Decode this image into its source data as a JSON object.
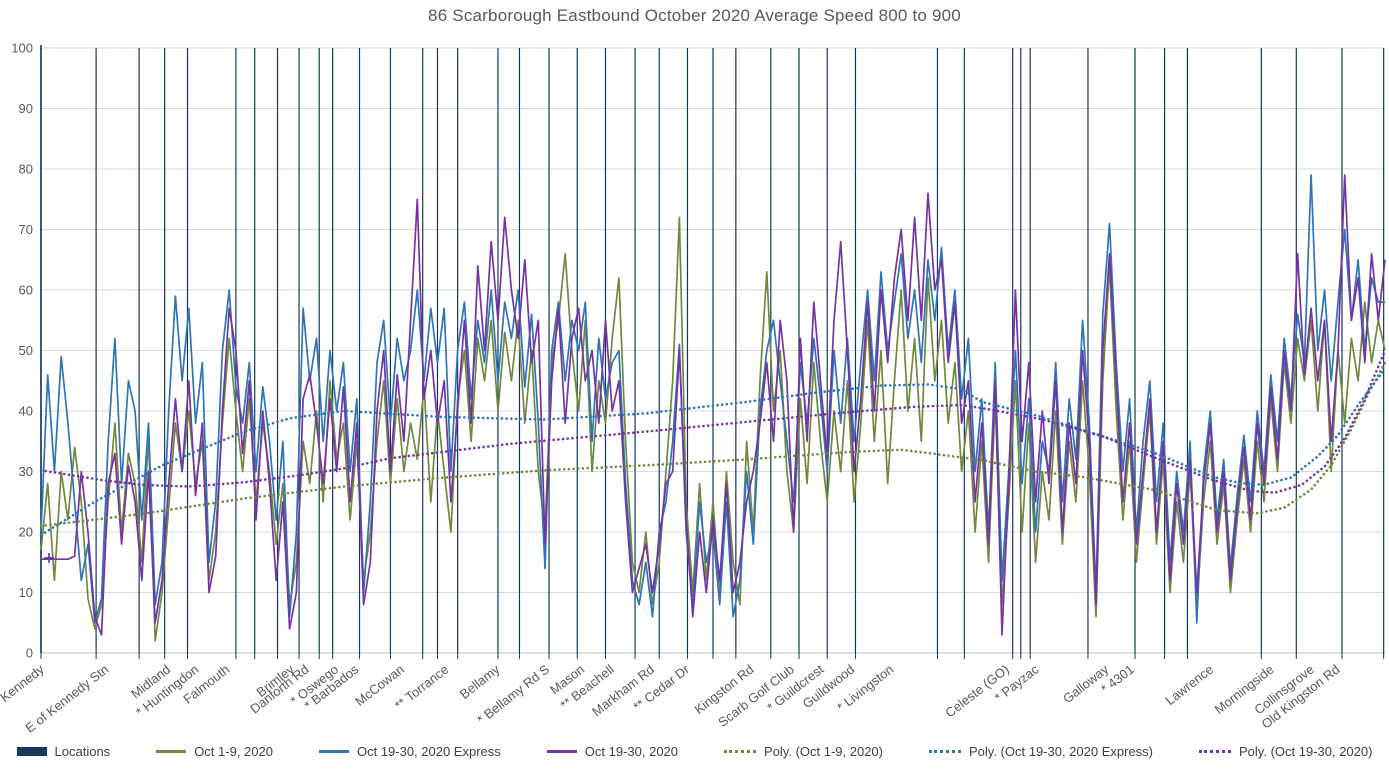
{
  "title": "86 Scarborough Eastbound October 2020 Average Speed 800 to 900",
  "colors": {
    "navy": "#17375E",
    "green": "#71893F",
    "blue": "#2E75B6",
    "purple": "#7633A4",
    "gridline": "#D9D9D9",
    "axis_line": "#BFBFBF",
    "axis_text": "#595959",
    "legend_text": "#404040"
  },
  "chart_data": {
    "type": "line",
    "title": "86 Scarborough Eastbound October 2020 Average Speed 800 to 900",
    "xlabel": "",
    "ylabel": "",
    "ylim": [
      0,
      100
    ],
    "ytick_step": 10,
    "grid": "horizontal",
    "legend_position": "bottom",
    "x_units": "normalized 0-1000 across plot width",
    "categories": [
      {
        "label": "Kennedy",
        "x": 3
      },
      {
        "label": "E of Kennedy Stn",
        "x": 51
      },
      {
        "label": "Midland",
        "x": 97
      },
      {
        "label": "* Huntingdon",
        "x": 118
      },
      {
        "label": "Falmouth",
        "x": 141
      },
      {
        "label": "Brimley",
        "x": 189
      },
      {
        "label": "Danforth Rd",
        "x": 200
      },
      {
        "label": "* Oswego",
        "x": 222
      },
      {
        "label": "* Barbados",
        "x": 237
      },
      {
        "label": "McCowan",
        "x": 271
      },
      {
        "label": "** Torrance",
        "x": 304
      },
      {
        "label": "Bellamy",
        "x": 342
      },
      {
        "label": "* Bellamy Rd S",
        "x": 379
      },
      {
        "label": "Mason",
        "x": 405
      },
      {
        "label": "** Beachell",
        "x": 427
      },
      {
        "label": "Markham Rd",
        "x": 457
      },
      {
        "label": "** Cedar Dr",
        "x": 483
      },
      {
        "label": "Kingston Rd",
        "x": 531
      },
      {
        "label": "Scarb Golf Club",
        "x": 561
      },
      {
        "label": "* Guildcrest",
        "x": 583
      },
      {
        "label": "Guildwood",
        "x": 606
      },
      {
        "label": "* Livingston",
        "x": 635
      },
      {
        "label": "Celeste (GO)",
        "x": 721
      },
      {
        "label": "* Payzac",
        "x": 743
      },
      {
        "label": "Galloway",
        "x": 795
      },
      {
        "label": "* 4301",
        "x": 814
      },
      {
        "label": "Lawrence",
        "x": 873
      },
      {
        "label": "Morningside",
        "x": 918
      },
      {
        "label": "Collinsgrove",
        "x": 948
      },
      {
        "label": "Old Kingston Rd",
        "x": 967
      }
    ],
    "location_lines_x": [
      0,
      41,
      73,
      92,
      109,
      145,
      159,
      176,
      192,
      207,
      217,
      237,
      260,
      284,
      295,
      310,
      340,
      356,
      378,
      399,
      420,
      442,
      460,
      481,
      500,
      517,
      543,
      564,
      585,
      606,
      667,
      687,
      723,
      729,
      736,
      779,
      814,
      836,
      853,
      908,
      934,
      968,
      999
    ],
    "series": [
      {
        "name": "Locations",
        "type": "vertical-lines",
        "color": "#17375E"
      },
      {
        "name": "Oct 1-9, 2020",
        "type": "line",
        "color": "#71893F",
        "x_step": 5,
        "values": [
          17,
          28,
          12,
          30,
          22,
          34,
          25,
          9,
          4,
          8,
          25,
          38,
          20,
          33,
          28,
          15,
          36,
          2,
          10,
          24,
          38,
          30,
          40,
          28,
          35,
          12,
          20,
          38,
          52,
          40,
          30,
          42,
          25,
          38,
          30,
          18,
          28,
          8,
          15,
          35,
          28,
          40,
          25,
          45,
          32,
          38,
          22,
          35,
          12,
          20,
          35,
          45,
          28,
          42,
          30,
          38,
          32,
          44,
          25,
          40,
          30,
          20,
          42,
          50,
          35,
          52,
          45,
          55,
          40,
          53,
          45,
          55,
          38,
          50,
          30,
          20,
          48,
          55,
          66,
          50,
          40,
          55,
          30,
          45,
          38,
          52,
          62,
          35,
          15,
          10,
          20,
          8,
          15,
          30,
          45,
          72,
          25,
          10,
          28,
          12,
          25,
          10,
          30,
          15,
          8,
          35,
          20,
          45,
          63,
          40,
          50,
          30,
          20,
          42,
          28,
          48,
          35,
          25,
          40,
          30,
          45,
          25,
          38,
          55,
          35,
          50,
          28,
          45,
          60,
          40,
          52,
          35,
          62,
          45,
          55,
          38,
          48,
          30,
          40,
          20,
          35,
          15,
          42,
          8,
          25,
          45,
          20,
          38,
          15,
          30,
          22,
          40,
          18,
          35,
          25,
          45,
          30,
          6,
          45,
          64,
          40,
          22,
          35,
          15,
          28,
          40,
          18,
          32,
          10,
          25,
          15,
          30,
          8,
          25,
          35,
          18,
          28,
          10,
          22,
          32,
          20,
          35,
          25,
          42,
          30,
          48,
          38,
          52,
          45,
          55,
          40,
          55,
          30,
          50,
          38,
          52,
          45,
          58,
          48,
          55,
          50
        ]
      },
      {
        "name": "Oct 19-30, 2020 Express",
        "type": "line",
        "color": "#2E75B6",
        "x_step": 5,
        "values": [
          20,
          46,
          30,
          49,
          38,
          25,
          12,
          18,
          5,
          9,
          35,
          52,
          28,
          45,
          40,
          22,
          38,
          8,
          15,
          40,
          59,
          45,
          57,
          38,
          48,
          15,
          25,
          50,
          60,
          44,
          38,
          48,
          30,
          44,
          35,
          22,
          35,
          6,
          20,
          57,
          45,
          52,
          35,
          50,
          40,
          48,
          30,
          42,
          10,
          25,
          48,
          55,
          38,
          52,
          45,
          50,
          60,
          45,
          57,
          48,
          57,
          30,
          50,
          58,
          42,
          55,
          48,
          60,
          45,
          58,
          52,
          60,
          44,
          56,
          38,
          14,
          50,
          58,
          45,
          55,
          50,
          58,
          35,
          52,
          42,
          48,
          50,
          28,
          12,
          8,
          15,
          6,
          20,
          25,
          35,
          51,
          20,
          8,
          25,
          15,
          20,
          8,
          25,
          6,
          12,
          30,
          18,
          40,
          50,
          55,
          45,
          35,
          25,
          48,
          38,
          52,
          42,
          30,
          50,
          38,
          52,
          35,
          48,
          60,
          45,
          63,
          50,
          58,
          66,
          52,
          60,
          48,
          65,
          55,
          67,
          50,
          60,
          42,
          52,
          30,
          42,
          20,
          48,
          12,
          30,
          50,
          28,
          42,
          20,
          35,
          30,
          48,
          25,
          42,
          32,
          55,
          38,
          10,
          56,
          71,
          48,
          30,
          42,
          20,
          35,
          45,
          25,
          38,
          15,
          30,
          20,
          35,
          5,
          30,
          40,
          22,
          32,
          14,
          26,
          36,
          25,
          40,
          30,
          46,
          35,
          52,
          42,
          56,
          48,
          79,
          50,
          60,
          45,
          58,
          70,
          55,
          65,
          50,
          62,
          58,
          58
        ]
      },
      {
        "name": "Oct 19-30, 2020",
        "type": "line",
        "color": "#7633A4",
        "x_step": 5,
        "start_marker": {
          "x": 6,
          "y": 15.7
        },
        "values": [
          15.5,
          15.5,
          15.5,
          15.5,
          15.5,
          16,
          30,
          20,
          6,
          3,
          28,
          33,
          18,
          31,
          25,
          12,
          30,
          5,
          12,
          28,
          42,
          30,
          45,
          26,
          38,
          10,
          16,
          40,
          57,
          50,
          33,
          45,
          22,
          40,
          28,
          12,
          25,
          4,
          10,
          42,
          46,
          38,
          28,
          42,
          30,
          44,
          25,
          38,
          8,
          15,
          40,
          50,
          30,
          46,
          35,
          55,
          75,
          42,
          50,
          38,
          45,
          25,
          40,
          55,
          38,
          64,
          50,
          68,
          55,
          72,
          60,
          52,
          65,
          48,
          55,
          18,
          45,
          57,
          38,
          52,
          57,
          45,
          50,
          38,
          55,
          40,
          45,
          25,
          10,
          14,
          18,
          10,
          18,
          28,
          30,
          50,
          22,
          6,
          20,
          10,
          22,
          12,
          28,
          10,
          15,
          25,
          30,
          38,
          48,
          35,
          55,
          45,
          20,
          52,
          35,
          58,
          45,
          32,
          55,
          68,
          50,
          30,
          42,
          58,
          40,
          60,
          48,
          62,
          70,
          55,
          72,
          55,
          76,
          60,
          65,
          48,
          58,
          38,
          45,
          25,
          38,
          18,
          45,
          3,
          28,
          60,
          35,
          48,
          25,
          40,
          28,
          45,
          20,
          38,
          28,
          50,
          35,
          8,
          50,
          66,
          45,
          25,
          38,
          18,
          30,
          42,
          20,
          35,
          12,
          28,
          18,
          32,
          10,
          28,
          38,
          20,
          30,
          12,
          24,
          34,
          22,
          38,
          28,
          44,
          32,
          50,
          40,
          66,
          46,
          57,
          45,
          55,
          35,
          50,
          79,
          55,
          62,
          48,
          66,
          55,
          65
        ]
      },
      {
        "name": "Poly. (Oct 1-9, 2020)",
        "type": "dotted",
        "color": "#71893F",
        "points": [
          [
            0,
            21
          ],
          [
            75,
            23
          ],
          [
            150,
            25.5
          ],
          [
            225,
            27.5
          ],
          [
            300,
            29
          ],
          [
            375,
            30.2
          ],
          [
            450,
            31
          ],
          [
            525,
            32
          ],
          [
            600,
            33.2
          ],
          [
            640,
            33.6
          ],
          [
            700,
            31.9
          ],
          [
            740,
            30
          ],
          [
            775,
            29.1
          ],
          [
            830,
            26.9
          ],
          [
            875,
            23.6
          ],
          [
            905,
            23.1
          ],
          [
            925,
            24
          ],
          [
            945,
            27
          ],
          [
            960,
            31
          ],
          [
            975,
            37
          ],
          [
            988,
            43
          ],
          [
            1000,
            48
          ]
        ]
      },
      {
        "name": "Poly. (Oct 19-30, 2020 Express)",
        "type": "dotted",
        "color": "#2E75B6",
        "points": [
          [
            0,
            19.5
          ],
          [
            40,
            25
          ],
          [
            90,
            31
          ],
          [
            150,
            36.5
          ],
          [
            185,
            38.8
          ],
          [
            225,
            40
          ],
          [
            300,
            39
          ],
          [
            375,
            38.6
          ],
          [
            450,
            39.6
          ],
          [
            525,
            41.5
          ],
          [
            575,
            43
          ],
          [
            625,
            44.2
          ],
          [
            660,
            44.4
          ],
          [
            685,
            43.6
          ],
          [
            700,
            41.5
          ],
          [
            740,
            39.3
          ],
          [
            782,
            36.4
          ],
          [
            827,
            33.2
          ],
          [
            872,
            29.1
          ],
          [
            892,
            28.1
          ],
          [
            910,
            27.8
          ],
          [
            930,
            29
          ],
          [
            950,
            32.5
          ],
          [
            965,
            36
          ],
          [
            980,
            41
          ],
          [
            1000,
            47
          ]
        ]
      },
      {
        "name": "Poly. (Oct 19-30, 2020)",
        "type": "dotted",
        "color": "#7633A4",
        "points": [
          [
            0,
            30.2
          ],
          [
            45,
            28.6
          ],
          [
            75,
            27.8
          ],
          [
            110,
            27.5
          ],
          [
            150,
            28.2
          ],
          [
            190,
            29.3
          ],
          [
            225,
            30.5
          ],
          [
            260,
            32.2
          ],
          [
            350,
            34.6
          ],
          [
            450,
            36.6
          ],
          [
            525,
            38.2
          ],
          [
            600,
            39.8
          ],
          [
            650,
            40.7
          ],
          [
            685,
            41
          ],
          [
            705,
            40.3
          ],
          [
            745,
            38.6
          ],
          [
            790,
            35.8
          ],
          [
            832,
            32
          ],
          [
            872,
            28.6
          ],
          [
            900,
            26.8
          ],
          [
            918,
            26.5
          ],
          [
            938,
            27.8
          ],
          [
            955,
            30.8
          ],
          [
            970,
            35.5
          ],
          [
            985,
            42
          ],
          [
            1000,
            50
          ]
        ]
      }
    ]
  },
  "legend": {
    "items": [
      {
        "label": "Locations",
        "swatch": "bar",
        "color": "#17375E"
      },
      {
        "label": "Oct 1-9, 2020",
        "swatch": "line",
        "color": "#71893F"
      },
      {
        "label": "Oct 19-30, 2020 Express",
        "swatch": "line",
        "color": "#2E75B6"
      },
      {
        "label": "Oct 19-30, 2020",
        "swatch": "line",
        "color": "#7633A4"
      },
      {
        "label": "Poly. (Oct 1-9, 2020)",
        "swatch": "dots",
        "color": "#71893F"
      },
      {
        "label": "Poly. (Oct 19-30, 2020 Express)",
        "swatch": "dots",
        "color": "#2E75B6"
      },
      {
        "label": "Poly. (Oct 19-30, 2020)",
        "swatch": "dots",
        "color": "#7633A4"
      }
    ]
  }
}
